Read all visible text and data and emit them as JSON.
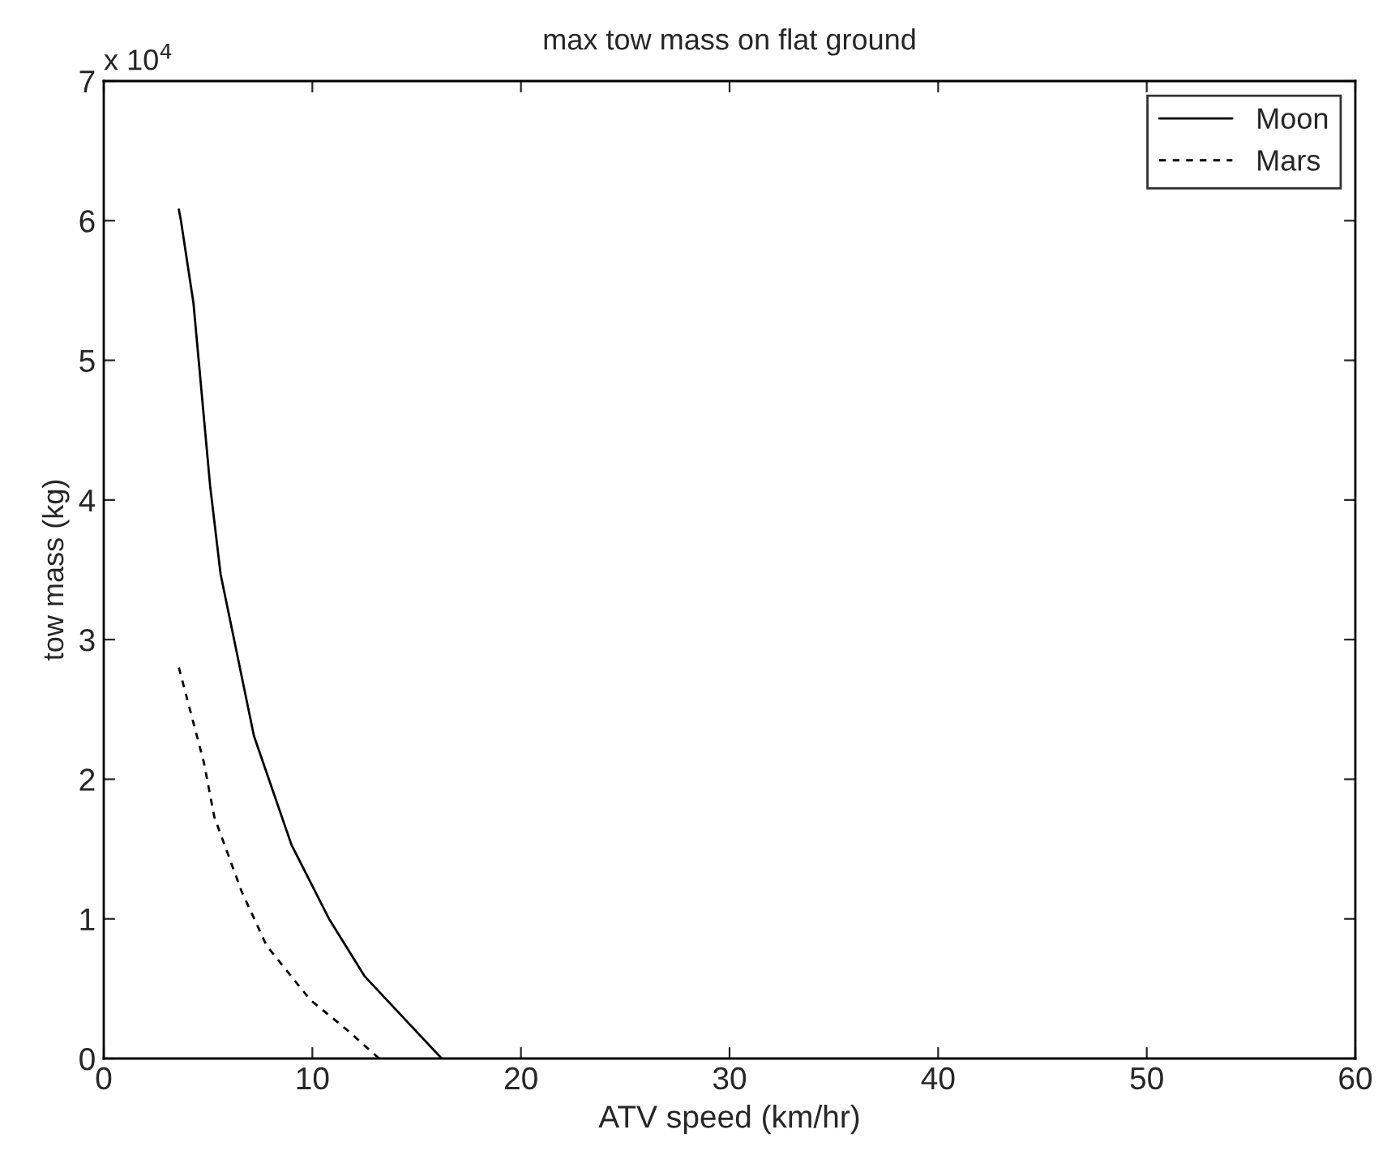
{
  "chart_data": {
    "type": "line",
    "title": "max tow mass on flat ground",
    "xlabel": "ATV speed (km/hr)",
    "ylabel": "tow mass (kg)",
    "annotations": [
      "x 10$^{4}$"
    ],
    "xlim": [
      0,
      60
    ],
    "xticks": [
      0,
      10,
      20,
      30,
      40,
      50,
      60
    ],
    "ylim": [
      0,
      7
    ],
    "yticks": [
      0,
      1,
      2,
      3,
      4,
      5,
      6,
      7
    ],
    "grid": false,
    "legend": "top right",
    "series": [
      {
        "name": "Moon",
        "color": "#000000",
        "line_style": "solid",
        "x": [
          3.6,
          3.7,
          4.3,
          5.1,
          5.6,
          7.2,
          9.0,
          10.8,
          12.5,
          16.2
        ],
        "values": [
          6.08,
          6.0,
          5.41,
          4.1,
          3.47,
          2.31,
          1.53,
          1.0,
          0.59,
          0.0
        ]
      },
      {
        "name": "Mars",
        "color": "#000000",
        "line_style": "dashed",
        "x": [
          3.6,
          4.8,
          5.3,
          6.6,
          7.8,
          9.9,
          11.7,
          13.2
        ],
        "values": [
          2.8,
          2.12,
          1.73,
          1.2,
          0.81,
          0.42,
          0.2,
          0.0
        ]
      }
    ]
  }
}
